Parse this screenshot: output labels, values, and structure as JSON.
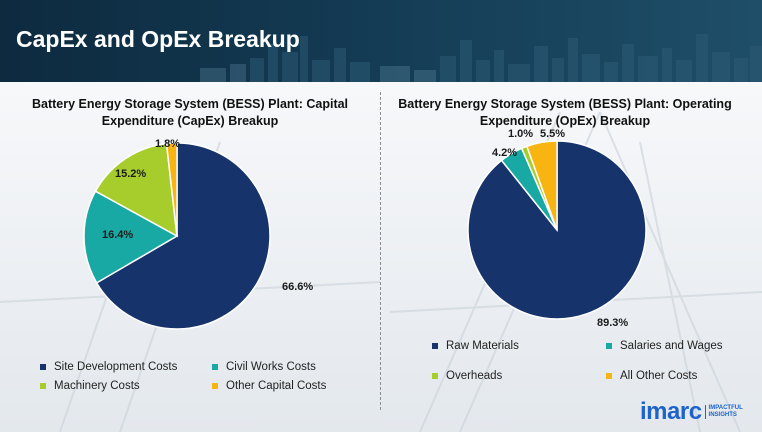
{
  "header": {
    "title": "CapEx and OpEx Breakup"
  },
  "colors": {
    "navy": "#17336b",
    "teal": "#19a9a4",
    "lime": "#a6cd2c",
    "orange": "#f8b511"
  },
  "chart_data": [
    {
      "type": "pie",
      "title": "Battery Energy Storage System (BESS) Plant: Capital Expenditure (CapEx) Breakup",
      "labels": [
        "Site Development Costs",
        "Civil Works Costs",
        "Machinery Costs",
        "Other Capital Costs"
      ],
      "values": [
        66.6,
        16.4,
        15.2,
        1.8
      ],
      "value_labels": [
        "66.6%",
        "16.4%",
        "15.2%",
        "1.8%"
      ],
      "colors": [
        "#17336b",
        "#19a9a4",
        "#a6cd2c",
        "#f8b511"
      ],
      "legend": "bottom"
    },
    {
      "type": "pie",
      "title": "Battery Energy Storage System (BESS) Plant: Operating Expenditure (OpEx) Breakup",
      "labels": [
        "Raw Materials",
        "Salaries and Wages",
        "Overheads",
        "All Other Costs"
      ],
      "values": [
        89.3,
        4.2,
        1.0,
        5.5
      ],
      "value_labels": [
        "89.3%",
        "4.2%",
        "1.0%",
        "5.5%"
      ],
      "colors": [
        "#17336b",
        "#19a9a4",
        "#a6cd2c",
        "#f8b511"
      ],
      "legend": "bottom"
    }
  ],
  "logo": {
    "name": "imarc",
    "tagline_1": "IMPACTFUL",
    "tagline_2": "INSIGHTS"
  }
}
